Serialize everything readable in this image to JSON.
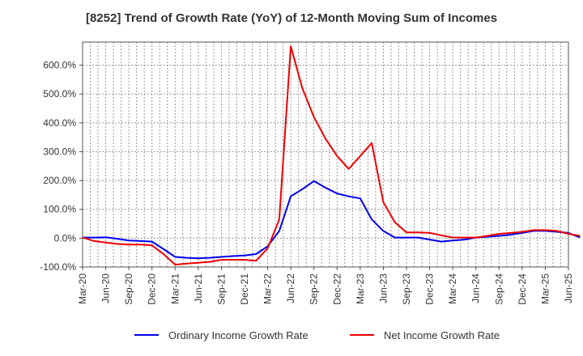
{
  "chart_data": {
    "type": "line",
    "title": "[8252]  Trend of Growth Rate (YoY) of 12-Month Moving Sum of Incomes",
    "xlabel": "",
    "ylabel": "",
    "ylim": [
      -100,
      680
    ],
    "yticks": [
      -100,
      0,
      100,
      200,
      300,
      400,
      500,
      600
    ],
    "ytick_labels": [
      "-100.0%",
      "0.0%",
      "100.0%",
      "200.0%",
      "300.0%",
      "400.0%",
      "500.0%",
      "600.0%"
    ],
    "xtick_labels": [
      "Mar-20",
      "Jun-20",
      "Sep-20",
      "Dec-20",
      "Mar-21",
      "Jun-21",
      "Sep-21",
      "Dec-21",
      "Mar-22",
      "Jun-22",
      "Sep-22",
      "Dec-22",
      "Mar-23",
      "Jun-23",
      "Sep-23",
      "Dec-23",
      "Mar-24",
      "Jun-24",
      "Sep-24",
      "Dec-24",
      "Mar-25",
      "Jun-25"
    ],
    "grid": true,
    "legend_position": "bottom",
    "series": [
      {
        "name": "Ordinary Income Growth Rate",
        "color": "#0000ee",
        "values": [
          2,
          2,
          3,
          -2,
          -8,
          -10,
          -12,
          -38,
          -65,
          -68,
          -70,
          -68,
          -65,
          -62,
          -60,
          -55,
          -28,
          25,
          145,
          170,
          198,
          175,
          155,
          145,
          138,
          65,
          25,
          2,
          2,
          2,
          -5,
          -12,
          -8,
          -5,
          2,
          5,
          8,
          12,
          18,
          25,
          25,
          22,
          18,
          2
        ]
      },
      {
        "name": "Net Income Growth Rate",
        "color": "#ee0000",
        "values": [
          2,
          -10,
          -15,
          -20,
          -22,
          -22,
          -25,
          -55,
          -92,
          -88,
          -85,
          -82,
          -75,
          -75,
          -75,
          -78,
          -35,
          65,
          665,
          520,
          420,
          345,
          285,
          240,
          285,
          330,
          125,
          55,
          20,
          20,
          18,
          10,
          2,
          2,
          2,
          8,
          15,
          18,
          22,
          28,
          28,
          25,
          15,
          8
        ]
      }
    ]
  }
}
